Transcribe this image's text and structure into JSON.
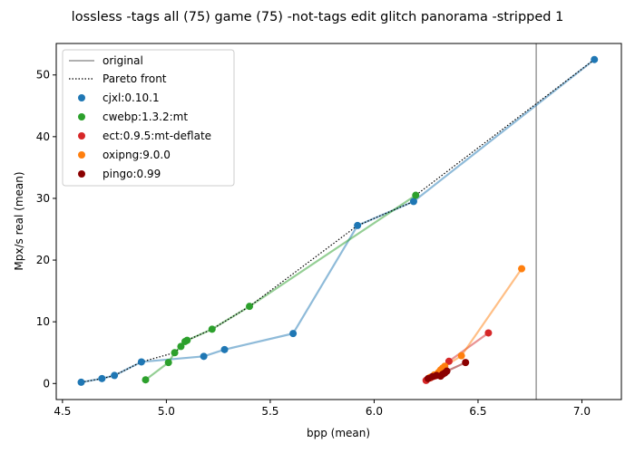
{
  "chart_data": {
    "type": "scatter",
    "title": "lossless -tags all (75) game (75) -not-tags edit glitch panorama -stripped 1",
    "xlabel": "bpp (mean)",
    "ylabel": "Mpx/s real (mean)",
    "xlim": [
      4.47,
      7.19
    ],
    "ylim": [
      -2.6,
      55.1
    ],
    "xticks": [
      4.5,
      5.0,
      5.5,
      6.0,
      6.5,
      7.0
    ],
    "xtick_labels": [
      "4.5",
      "5.0",
      "5.5",
      "6.0",
      "6.5",
      "7.0"
    ],
    "yticks": [
      0,
      10,
      20,
      30,
      40,
      50
    ],
    "ytick_labels": [
      "0",
      "10",
      "20",
      "30",
      "40",
      "50"
    ],
    "grid": false,
    "legend_position": "top-left",
    "original": {
      "label": "original",
      "x": 6.78,
      "color": "#808080"
    },
    "pareto": {
      "label": "Pareto front",
      "color": "#000000",
      "x": [
        4.59,
        4.69,
        4.75,
        4.88,
        5.04,
        5.07,
        5.1,
        5.22,
        5.4,
        5.92,
        6.19,
        6.2,
        7.06
      ],
      "y": [
        0.2,
        0.8,
        1.3,
        3.5,
        5.0,
        6.0,
        7.0,
        8.8,
        12.5,
        25.6,
        29.5,
        30.5,
        52.5
      ]
    },
    "series": [
      {
        "name": "cjxl:0.10.1",
        "color": "#1f77b4",
        "x": [
          4.59,
          4.69,
          4.75,
          4.88,
          5.18,
          5.28,
          5.61,
          5.92,
          6.19,
          7.06
        ],
        "y": [
          0.2,
          0.8,
          1.3,
          3.5,
          4.4,
          5.5,
          8.1,
          25.6,
          29.5,
          52.5
        ]
      },
      {
        "name": "cwebp:1.3.2:mt",
        "color": "#2ca02c",
        "x": [
          4.9,
          5.01,
          5.04,
          5.07,
          5.09,
          5.1,
          5.22,
          5.4,
          6.2
        ],
        "y": [
          0.6,
          3.4,
          5.0,
          6.0,
          6.8,
          7.0,
          8.8,
          12.5,
          30.5
        ]
      },
      {
        "name": "ect:0.9.5:mt-deflate",
        "color": "#d62728",
        "x": [
          6.25,
          6.27,
          6.29,
          6.31,
          6.33,
          6.36,
          6.55
        ],
        "y": [
          0.5,
          0.9,
          1.2,
          1.5,
          1.9,
          3.6,
          8.2
        ]
      },
      {
        "name": "oxipng:9.0.0",
        "color": "#ff7f0e",
        "x": [
          6.27,
          6.29,
          6.31,
          6.32,
          6.33,
          6.34,
          6.42,
          6.71
        ],
        "y": [
          1.0,
          1.4,
          1.8,
          2.2,
          2.5,
          2.8,
          4.5,
          18.6
        ]
      },
      {
        "name": "pingo:0.99",
        "color": "#8b0000",
        "x": [
          6.26,
          6.28,
          6.3,
          6.32,
          6.33,
          6.34,
          6.35,
          6.44
        ],
        "y": [
          0.8,
          1.1,
          1.3,
          1.2,
          1.5,
          1.7,
          2.0,
          3.4
        ]
      }
    ]
  }
}
